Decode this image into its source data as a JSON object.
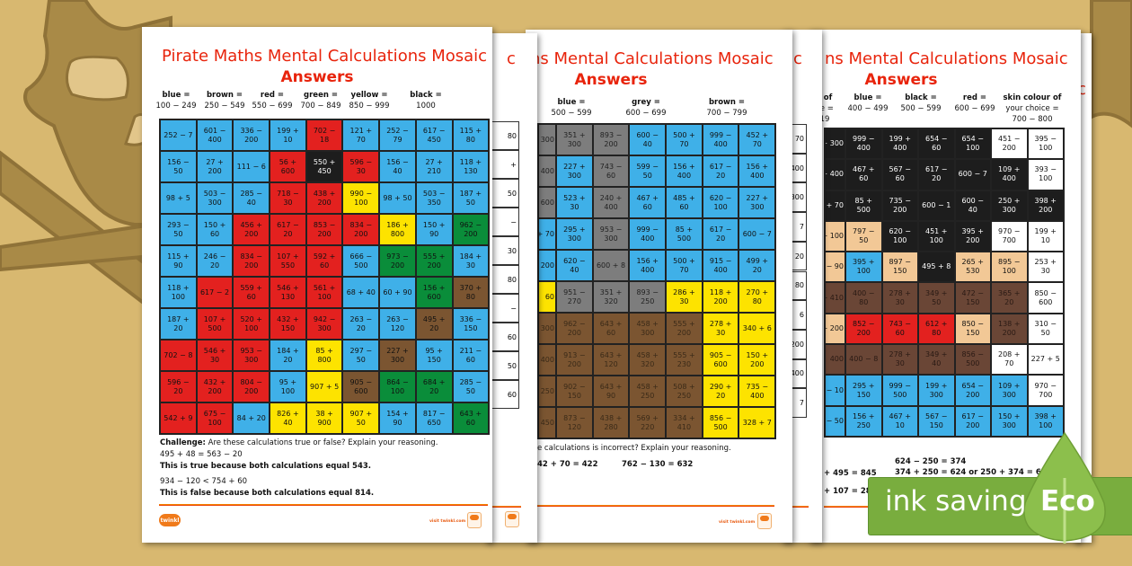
{
  "palette": {
    "B": "#3fb0e8",
    "R": "#e3211f",
    "Y": "#fde300",
    "G": "#0a8d3a",
    "N": "#7b5531",
    "K": "#1d1d1d",
    "E": "#7d7d7d",
    "S": "#f2c896",
    "W": "#ffffff",
    "D": "#6a4636"
  },
  "sheets": [
    {
      "title": "Pirate Maths Mental Calculations Mosaic",
      "subtitle": "Answers",
      "legend": [
        {
          "label": "blue =",
          "range": "100 − 249"
        },
        {
          "label": "brown =",
          "range": "250 − 549"
        },
        {
          "label": "red =",
          "range": "550 − 699"
        },
        {
          "label": "green =",
          "range": "700 − 849"
        },
        {
          "label": "yellow =",
          "range": "850 − 999"
        },
        {
          "label": "black =",
          "range": "1000"
        }
      ],
      "grid": [
        {
          "cells": [
            "252 − 7",
            "601 − 400",
            "336 − 200",
            "199 + 10",
            "702 − 18",
            "121 + 70",
            "252 − 79",
            "617 − 450",
            "115 + 80"
          ],
          "colors": "BBBBRBBBB"
        },
        {
          "cells": [
            "156 − 50",
            "27 + 200",
            "111 − 6",
            "56 + 600",
            "550 + 450",
            "596 − 30",
            "156 − 40",
            "27 + 210",
            "118 + 130"
          ],
          "colors": "BBBRKRBBB"
        },
        {
          "cells": [
            "98 + 5",
            "503 − 300",
            "285 − 40",
            "718 − 30",
            "438 + 200",
            "990 − 100",
            "98 + 50",
            "503 − 350",
            "187 + 50"
          ],
          "colors": "BBBRRYBBB"
        },
        {
          "cells": [
            "293 − 50",
            "150 + 60",
            "456 + 200",
            "617 − 20",
            "853 − 200",
            "834 − 200",
            "186 + 800",
            "150 + 90",
            "962 − 200"
          ],
          "colors": "BBRRRRYBG"
        },
        {
          "cells": [
            "115 + 90",
            "246 − 20",
            "834 − 200",
            "107 + 550",
            "592 + 60",
            "666 − 500",
            "973 − 200",
            "555 + 200",
            "184 + 30"
          ],
          "colors": "BBRRRBGGB"
        },
        {
          "cells": [
            "118 + 100",
            "617 − 2",
            "559 + 60",
            "546 + 130",
            "561 + 100",
            "68 + 40",
            "60 + 90",
            "156 + 600",
            "370 + 80"
          ],
          "colors": "BRRRRBBGN"
        },
        {
          "cells": [
            "187 + 20",
            "107 + 500",
            "520 + 100",
            "432 + 150",
            "942 − 300",
            "263 − 20",
            "263 − 120",
            "495 + 20",
            "336 − 150"
          ],
          "colors": "BRRRRBBNB"
        },
        {
          "cells": [
            "702 − 8",
            "546 + 30",
            "953 − 300",
            "184 + 20",
            "85 + 800",
            "297 − 50",
            "227 + 300",
            "95 + 150",
            "211 − 60"
          ],
          "colors": "RRRBYBNBB"
        },
        {
          "cells": [
            "596 − 20",
            "432 + 200",
            "804 − 200",
            "95 + 100",
            "907 + 5",
            "905 − 600",
            "864 − 100",
            "684 + 20",
            "285 − 50"
          ],
          "colors": "RRRBYNGGB"
        },
        {
          "cells": [
            "542 + 9",
            "675 − 100",
            "84 + 20",
            "826 + 40",
            "38 + 900",
            "907 + 50",
            "154 + 90",
            "817 − 650",
            "643 + 60"
          ],
          "colors": "RRBYYYBBG"
        }
      ],
      "challenge": {
        "label": "Challenge:",
        "question": " Are these calculations true or false? Explain your reasoning.",
        "lines": [
          "495 + 48 = 563 − 20",
          "This is true because both calculations equal 543.",
          "934 − 120 < 754 + 60",
          "This is false because both calculations equal 814."
        ]
      },
      "footer": {
        "logo": "twinkl",
        "visit": "visit twinkl.com"
      }
    },
    {
      "title": "ns Mental Calculations Mosaic",
      "subtitle": "Answers",
      "legend": [
        {
          "label": "blue =",
          "range": "500 − 599"
        },
        {
          "label": "grey =",
          "range": "600 − 699"
        },
        {
          "label": "brown =",
          "range": "700 − 799"
        }
      ],
      "grid": [
        {
          "cells": [
            "300",
            "351 + 300",
            "893 − 200",
            "600 − 40",
            "500 + 70",
            "999 − 400",
            "452 + 70"
          ],
          "colors": "EEEBBBB"
        },
        {
          "cells": [
            "400",
            "227 + 300",
            "743 − 60",
            "599 − 50",
            "156 + 400",
            "617 − 20",
            "156 + 400"
          ],
          "colors": "EBEBBBB"
        },
        {
          "cells": [
            "600",
            "523 + 30",
            "240 + 400",
            "467 + 60",
            "485 + 60",
            "620 − 100",
            "227 + 300"
          ],
          "colors": "EBEBBBB"
        },
        {
          "cells": [
            "+ 70",
            "295 + 300",
            "953 − 300",
            "999 − 400",
            "85 + 500",
            "617 − 20",
            "600 − 7"
          ],
          "colors": "BBEBBBB"
        },
        {
          "cells": [
            "200",
            "620 − 40",
            "600 + 8",
            "156 + 400",
            "500 + 70",
            "915 − 400",
            "499 + 20"
          ],
          "colors": "BBEBBBB"
        },
        {
          "cells": [
            "60",
            "951 − 270",
            "351 + 320",
            "893 − 250",
            "286 + 30",
            "118 + 200",
            "270 + 80"
          ],
          "colors": "YEEEYYY"
        },
        {
          "cells": [
            "300",
            "962 − 200",
            "643 + 60",
            "458 + 300",
            "555 + 200",
            "278 + 30",
            "340 + 6"
          ],
          "colors": "NNNNNYY"
        },
        {
          "cells": [
            "400",
            "913 − 200",
            "643 + 120",
            "458 + 320",
            "555 + 230",
            "905 − 600",
            "150 + 200"
          ],
          "colors": "NNNNNYY"
        },
        {
          "cells": [
            "250",
            "902 − 150",
            "643 + 90",
            "458 + 250",
            "508 + 250",
            "290 + 20",
            "735 − 400"
          ],
          "colors": "NNNNNYY"
        },
        {
          "cells": [
            "450",
            "873 − 120",
            "438 + 280",
            "569 + 220",
            "334 + 410",
            "856 − 500",
            "328 + 7"
          ],
          "colors": "NNNNNYY"
        }
      ],
      "challenge": {
        "question": "e calculations is incorrect? Explain your reasoning.",
        "lines": [
          "42 + 70 = 422",
          "762 − 130 = 632"
        ]
      },
      "footer": {
        "visit": "visit twinkl.com"
      }
    },
    {
      "title": "ns Mental Calculations Mosaic",
      "subtitle": "Answers",
      "legend": [
        {
          "label": "r of",
          "range": "ce =",
          "extra": "19"
        },
        {
          "label": "blue =",
          "range": "400 − 499"
        },
        {
          "label": "black =",
          "range": "500 − 599"
        },
        {
          "label": "red =",
          "range": "600 − 699"
        },
        {
          "label": "skin colour of",
          "range": "your choice =",
          "extra": "700 − 800"
        }
      ],
      "grid": [
        {
          "cells": [
            "+ 300",
            "999 − 400",
            "199 + 400",
            "654 − 60",
            "654 − 100",
            "451 − 200",
            "395 − 100"
          ],
          "colors": "KKKKKWW"
        },
        {
          "cells": [
            "+ 400",
            "467 + 60",
            "567 − 60",
            "617 − 20",
            "600 − 7",
            "109 + 400",
            "393 − 100"
          ],
          "colors": "KKKKKKW"
        },
        {
          "cells": [
            "+ 70",
            "85 + 500",
            "735 − 200",
            "600 − 1",
            "600 − 40",
            "250 + 300",
            "398 + 200"
          ],
          "colors": "KKKKKKK"
        },
        {
          "cells": [
            "− 100",
            "797 − 50",
            "620 − 100",
            "451 + 100",
            "395 + 200",
            "970 − 700",
            "199 + 10"
          ],
          "colors": "SSKKKWW"
        },
        {
          "cells": [
            "− 90",
            "395 + 100",
            "897 − 150",
            "495 + 8",
            "265 + 530",
            "895 − 100",
            "253 + 30"
          ],
          "colors": "SBSKSSW"
        },
        {
          "cells": [
            "− 410",
            "400 − 80",
            "278 + 30",
            "349 + 50",
            "472 − 150",
            "365 + 20",
            "850 − 600"
          ],
          "colors": "DDDDDDW"
        },
        {
          "cells": [
            "− 200",
            "852 − 200",
            "743 − 60",
            "612 + 80",
            "850 − 150",
            "138 + 200",
            "310 − 50"
          ],
          "colors": "SRRRSDW"
        },
        {
          "cells": [
            "400",
            "400 − 8",
            "278 + 30",
            "349 + 40",
            "856 − 500",
            "208 + 70",
            "227 + 5"
          ],
          "colors": "DDDDDWW"
        },
        {
          "cells": [
            "− 10",
            "295 + 150",
            "999 − 500",
            "199 + 300",
            "654 − 200",
            "109 + 300",
            "970 − 700"
          ],
          "colors": "BBBBBBW"
        },
        {
          "cells": [
            "− 50",
            "156 + 250",
            "467 + 10",
            "567 − 150",
            "617 − 200",
            "150 + 300",
            "398 + 100"
          ],
          "colors": "BBBBBBB"
        }
      ],
      "challenge": {
        "lines": [
          "+ 495 = 845",
          "+ 107 = 287",
          "624 − 250 = 374",
          "374 + 250 = 624 or 250 + 374 = 624"
        ]
      }
    }
  ],
  "back_sheets": [
    {
      "title_fragment": "c",
      "cells": [
        "80",
        "+",
        "50",
        "−",
        "30",
        "80",
        "−",
        "60",
        "50",
        "60"
      ]
    },
    {
      "title_fragment": "c",
      "cells": [
        "70",
        "400",
        "300",
        "7",
        "20",
        "80",
        "6",
        "200",
        "400",
        "7"
      ]
    },
    {
      "title_fragment": "c"
    }
  ],
  "eco_badge": {
    "text": "ink saving",
    "word": "Eco",
    "color": "#79ad3e"
  }
}
